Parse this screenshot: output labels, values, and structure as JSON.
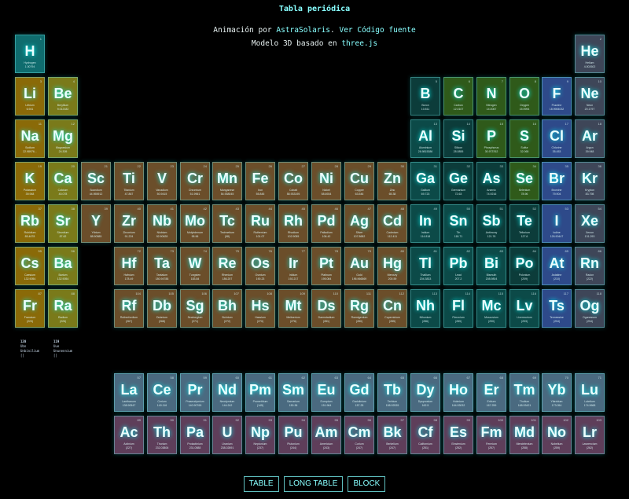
{
  "header": {
    "title": "Tabla periódica",
    "line1_prefix": "Animación por ",
    "line1_author": "AstraSolaris",
    "line1_sep": ". ",
    "line1_link": "Ver Código fuente",
    "line2_prefix": "Modelo 3D basado en ",
    "line2_link": "three.js"
  },
  "colors": {
    "alkali": "#8a6a08",
    "alkaline": "#7a7a1a",
    "transition": "#6b4e2a",
    "nonmetal": "#2f5a1a",
    "halogen": "#2e4a8a",
    "noble": "#3e4658",
    "poor": "#0c4a48",
    "metalloid": "#0c3c3a",
    "hydrogen": "#0f6c6e",
    "lanthanide": "#4a6a80",
    "actinide": "#5e3e5a"
  },
  "elements": [
    {
      "s": "H",
      "n": "1",
      "name": "Hydrogen",
      "m": "1.00794",
      "col": 1,
      "row": 1,
      "cat": "hydrogen"
    },
    {
      "s": "He",
      "n": "2",
      "name": "Helium",
      "m": "4.002602",
      "col": 18,
      "row": 1,
      "cat": "noble"
    },
    {
      "s": "Li",
      "n": "3",
      "name": "Lithium",
      "m": "6.941",
      "col": 1,
      "row": 2,
      "cat": "alkali"
    },
    {
      "s": "Be",
      "n": "4",
      "name": "Beryllium",
      "m": "9.012182",
      "col": 2,
      "row": 2,
      "cat": "alkaline"
    },
    {
      "s": "B",
      "n": "5",
      "name": "Boron",
      "m": "10.811",
      "col": 13,
      "row": 2,
      "cat": "metalloid"
    },
    {
      "s": "C",
      "n": "6",
      "name": "Carbon",
      "m": "12.0107",
      "col": 14,
      "row": 2,
      "cat": "nonmetal"
    },
    {
      "s": "N",
      "n": "7",
      "name": "Nitrogen",
      "m": "14.0067",
      "col": 15,
      "row": 2,
      "cat": "nonmetal"
    },
    {
      "s": "O",
      "n": "8",
      "name": "Oxygen",
      "m": "15.9994",
      "col": 16,
      "row": 2,
      "cat": "nonmetal"
    },
    {
      "s": "F",
      "n": "9",
      "name": "Fluorine",
      "m": "18.9984032",
      "col": 17,
      "row": 2,
      "cat": "halogen"
    },
    {
      "s": "Ne",
      "n": "10",
      "name": "Neon",
      "m": "20.1797",
      "col": 18,
      "row": 2,
      "cat": "noble"
    },
    {
      "s": "Na",
      "n": "11",
      "name": "Sodium",
      "m": "22.98976...",
      "col": 1,
      "row": 3,
      "cat": "alkali"
    },
    {
      "s": "Mg",
      "n": "12",
      "name": "Magnesium",
      "m": "24.305",
      "col": 2,
      "row": 3,
      "cat": "alkaline"
    },
    {
      "s": "Al",
      "n": "13",
      "name": "Aluminium",
      "m": "26.9815386",
      "col": 13,
      "row": 3,
      "cat": "poor"
    },
    {
      "s": "Si",
      "n": "14",
      "name": "Silicon",
      "m": "28.0855",
      "col": 14,
      "row": 3,
      "cat": "metalloid"
    },
    {
      "s": "P",
      "n": "15",
      "name": "Phosphorus",
      "m": "30.973762",
      "col": 15,
      "row": 3,
      "cat": "nonmetal"
    },
    {
      "s": "S",
      "n": "16",
      "name": "Sulfur",
      "m": "32.065",
      "col": 16,
      "row": 3,
      "cat": "nonmetal"
    },
    {
      "s": "Cl",
      "n": "17",
      "name": "Chlorine",
      "m": "35.453",
      "col": 17,
      "row": 3,
      "cat": "halogen"
    },
    {
      "s": "Ar",
      "n": "18",
      "name": "Argon",
      "m": "39.948",
      "col": 18,
      "row": 3,
      "cat": "noble"
    },
    {
      "s": "K",
      "n": "19",
      "name": "Potassium",
      "m": "39.948",
      "col": 1,
      "row": 4,
      "cat": "alkali"
    },
    {
      "s": "Ca",
      "n": "20",
      "name": "Calcium",
      "m": "40.078",
      "col": 2,
      "row": 4,
      "cat": "alkaline"
    },
    {
      "s": "Sc",
      "n": "21",
      "name": "Scandium",
      "m": "44.955912",
      "col": 3,
      "row": 4,
      "cat": "transition"
    },
    {
      "s": "Ti",
      "n": "22",
      "name": "Titanium",
      "m": "47.867",
      "col": 4,
      "row": 4,
      "cat": "transition"
    },
    {
      "s": "V",
      "n": "23",
      "name": "Vanadium",
      "m": "50.9415",
      "col": 5,
      "row": 4,
      "cat": "transition"
    },
    {
      "s": "Cr",
      "n": "24",
      "name": "Chromium",
      "m": "51.9961",
      "col": 6,
      "row": 4,
      "cat": "transition"
    },
    {
      "s": "Mn",
      "n": "25",
      "name": "Manganese",
      "m": "54.938045",
      "col": 7,
      "row": 4,
      "cat": "transition"
    },
    {
      "s": "Fe",
      "n": "26",
      "name": "Iron",
      "m": "55.845",
      "col": 8,
      "row": 4,
      "cat": "transition"
    },
    {
      "s": "Co",
      "n": "27",
      "name": "Cobalt",
      "m": "58.933195",
      "col": 9,
      "row": 4,
      "cat": "transition"
    },
    {
      "s": "Ni",
      "n": "28",
      "name": "Nickel",
      "m": "58.6934",
      "col": 10,
      "row": 4,
      "cat": "transition"
    },
    {
      "s": "Cu",
      "n": "29",
      "name": "Copper",
      "m": "63.546",
      "col": 11,
      "row": 4,
      "cat": "transition"
    },
    {
      "s": "Zn",
      "n": "30",
      "name": "Zinc",
      "m": "65.38",
      "col": 12,
      "row": 4,
      "cat": "transition"
    },
    {
      "s": "Ga",
      "n": "31",
      "name": "Gallium",
      "m": "69.723",
      "col": 13,
      "row": 4,
      "cat": "poor"
    },
    {
      "s": "Ge",
      "n": "32",
      "name": "Germanium",
      "m": "72.63",
      "col": 14,
      "row": 4,
      "cat": "metalloid"
    },
    {
      "s": "As",
      "n": "33",
      "name": "Arsenic",
      "m": "74.9216",
      "col": 15,
      "row": 4,
      "cat": "metalloid"
    },
    {
      "s": "Se",
      "n": "34",
      "name": "Selenium",
      "m": "78.96",
      "col": 16,
      "row": 4,
      "cat": "nonmetal"
    },
    {
      "s": "Br",
      "n": "35",
      "name": "Bromine",
      "m": "79.904",
      "col": 17,
      "row": 4,
      "cat": "halogen"
    },
    {
      "s": "Kr",
      "n": "36",
      "name": "Krypton",
      "m": "83.798",
      "col": 18,
      "row": 4,
      "cat": "noble"
    },
    {
      "s": "Rb",
      "n": "37",
      "name": "Rubidium",
      "m": "85.4678",
      "col": 1,
      "row": 5,
      "cat": "alkali"
    },
    {
      "s": "Sr",
      "n": "38",
      "name": "Strontium",
      "m": "87.62",
      "col": 2,
      "row": 5,
      "cat": "alkaline"
    },
    {
      "s": "Y",
      "n": "39",
      "name": "Yttrium",
      "m": "88.90585",
      "col": 3,
      "row": 5,
      "cat": "transition"
    },
    {
      "s": "Zr",
      "n": "40",
      "name": "Zirconium",
      "m": "91.224",
      "col": 4,
      "row": 5,
      "cat": "transition"
    },
    {
      "s": "Nb",
      "n": "41",
      "name": "Niobium",
      "m": "92.90628",
      "col": 5,
      "row": 5,
      "cat": "transition"
    },
    {
      "s": "Mo",
      "n": "42",
      "name": "Molybdenum",
      "m": "95.96",
      "col": 6,
      "row": 5,
      "cat": "transition"
    },
    {
      "s": "Tc",
      "n": "43",
      "name": "Technetium",
      "m": "(98)",
      "col": 7,
      "row": 5,
      "cat": "transition"
    },
    {
      "s": "Ru",
      "n": "44",
      "name": "Ruthenium",
      "m": "101.07",
      "col": 8,
      "row": 5,
      "cat": "transition"
    },
    {
      "s": "Rh",
      "n": "45",
      "name": "Rhodium",
      "m": "102.9055",
      "col": 9,
      "row": 5,
      "cat": "transition"
    },
    {
      "s": "Pd",
      "n": "46",
      "name": "Palladium",
      "m": "106.42",
      "col": 10,
      "row": 5,
      "cat": "transition"
    },
    {
      "s": "Ag",
      "n": "47",
      "name": "Silver",
      "m": "107.8682",
      "col": 11,
      "row": 5,
      "cat": "transition"
    },
    {
      "s": "Cd",
      "n": "48",
      "name": "Cadmium",
      "m": "112.411",
      "col": 12,
      "row": 5,
      "cat": "transition"
    },
    {
      "s": "In",
      "n": "49",
      "name": "Indium",
      "m": "114.818",
      "col": 13,
      "row": 5,
      "cat": "poor"
    },
    {
      "s": "Sn",
      "n": "50",
      "name": "Tin",
      "m": "118.71",
      "col": 14,
      "row": 5,
      "cat": "poor"
    },
    {
      "s": "Sb",
      "n": "51",
      "name": "Antimony",
      "m": "121.76",
      "col": 15,
      "row": 5,
      "cat": "metalloid"
    },
    {
      "s": "Te",
      "n": "52",
      "name": "Tellurium",
      "m": "127.6",
      "col": 16,
      "row": 5,
      "cat": "metalloid"
    },
    {
      "s": "I",
      "n": "53",
      "name": "Iodine",
      "m": "126.90447",
      "col": 17,
      "row": 5,
      "cat": "halogen"
    },
    {
      "s": "Xe",
      "n": "54",
      "name": "Xenon",
      "m": "131.293",
      "col": 18,
      "row": 5,
      "cat": "noble"
    },
    {
      "s": "Cs",
      "n": "55",
      "name": "Caesium",
      "m": "132.9054",
      "col": 1,
      "row": 6,
      "cat": "alkali"
    },
    {
      "s": "Ba",
      "n": "56",
      "name": "Barium",
      "m": "132.9054",
      "col": 2,
      "row": 6,
      "cat": "alkaline"
    },
    {
      "s": "Hf",
      "n": "72",
      "name": "Hafnium",
      "m": "178.49",
      "col": 4,
      "row": 6,
      "cat": "transition"
    },
    {
      "s": "Ta",
      "n": "73",
      "name": "Tantalum",
      "m": "180.94788",
      "col": 5,
      "row": 6,
      "cat": "transition"
    },
    {
      "s": "W",
      "n": "74",
      "name": "Tungsten",
      "m": "183.84",
      "col": 6,
      "row": 6,
      "cat": "transition"
    },
    {
      "s": "Re",
      "n": "75",
      "name": "Rhenium",
      "m": "186.207",
      "col": 7,
      "row": 6,
      "cat": "transition"
    },
    {
      "s": "Os",
      "n": "76",
      "name": "Osmium",
      "m": "190.23",
      "col": 8,
      "row": 6,
      "cat": "transition"
    },
    {
      "s": "Ir",
      "n": "77",
      "name": "Iridium",
      "m": "192.217",
      "col": 9,
      "row": 6,
      "cat": "transition"
    },
    {
      "s": "Pt",
      "n": "78",
      "name": "Platinum",
      "m": "195.084",
      "col": 10,
      "row": 6,
      "cat": "transition"
    },
    {
      "s": "Au",
      "n": "79",
      "name": "Gold",
      "m": "196.966569",
      "col": 11,
      "row": 6,
      "cat": "transition"
    },
    {
      "s": "Hg",
      "n": "80",
      "name": "Mercury",
      "m": "200.59",
      "col": 12,
      "row": 6,
      "cat": "transition"
    },
    {
      "s": "Tl",
      "n": "81",
      "name": "Thallium",
      "m": "204.3833",
      "col": 13,
      "row": 6,
      "cat": "poor"
    },
    {
      "s": "Pb",
      "n": "82",
      "name": "Lead",
      "m": "207.2",
      "col": 14,
      "row": 6,
      "cat": "poor"
    },
    {
      "s": "Bi",
      "n": "83",
      "name": "Bismuth",
      "m": "208.9804",
      "col": 15,
      "row": 6,
      "cat": "poor"
    },
    {
      "s": "Po",
      "n": "84",
      "name": "Polonium",
      "m": "(209)",
      "col": 16,
      "row": 6,
      "cat": "metalloid"
    },
    {
      "s": "At",
      "n": "85",
      "name": "Astatine",
      "m": "(210)",
      "col": 17,
      "row": 6,
      "cat": "halogen"
    },
    {
      "s": "Rn",
      "n": "86",
      "name": "Radon",
      "m": "(222)",
      "col": 18,
      "row": 6,
      "cat": "noble"
    },
    {
      "s": "Fr",
      "n": "87",
      "name": "Francium",
      "m": "(223)",
      "col": 1,
      "row": 7,
      "cat": "alkali"
    },
    {
      "s": "Ra",
      "n": "88",
      "name": "Radium",
      "m": "(226)",
      "col": 2,
      "row": 7,
      "cat": "alkaline"
    },
    {
      "s": "Rf",
      "n": "104",
      "name": "Rutherfordium",
      "m": "(267)",
      "col": 4,
      "row": 7,
      "cat": "transition"
    },
    {
      "s": "Db",
      "n": "105",
      "name": "Dubnium",
      "m": "(268)",
      "col": 5,
      "row": 7,
      "cat": "transition"
    },
    {
      "s": "Sg",
      "n": "106",
      "name": "Seaborgium",
      "m": "(271)",
      "col": 6,
      "row": 7,
      "cat": "transition"
    },
    {
      "s": "Bh",
      "n": "107",
      "name": "Bohrium",
      "m": "(272)",
      "col": 7,
      "row": 7,
      "cat": "transition"
    },
    {
      "s": "Hs",
      "n": "108",
      "name": "Hassium",
      "m": "(270)",
      "col": 8,
      "row": 7,
      "cat": "transition"
    },
    {
      "s": "Mt",
      "n": "109",
      "name": "Meitnerium",
      "m": "(276)",
      "col": 9,
      "row": 7,
      "cat": "transition"
    },
    {
      "s": "Ds",
      "n": "110",
      "name": "Darmstadium",
      "m": "(281)",
      "col": 10,
      "row": 7,
      "cat": "transition"
    },
    {
      "s": "Rg",
      "n": "111",
      "name": "Roentgenium",
      "m": "(280)",
      "col": 11,
      "row": 7,
      "cat": "transition"
    },
    {
      "s": "Cn",
      "n": "112",
      "name": "Copernicium",
      "m": "(285)",
      "col": 12,
      "row": 7,
      "cat": "transition"
    },
    {
      "s": "Nh",
      "n": "113",
      "name": "Nihonium",
      "m": "(286)",
      "col": 13,
      "row": 7,
      "cat": "poor"
    },
    {
      "s": "Fl",
      "n": "114",
      "name": "Flerovium",
      "m": "(289)",
      "col": 14,
      "row": 7,
      "cat": "poor"
    },
    {
      "s": "Mc",
      "n": "115",
      "name": "Moscovium",
      "m": "(290)",
      "col": 15,
      "row": 7,
      "cat": "poor"
    },
    {
      "s": "Lv",
      "n": "116",
      "name": "Livermorium",
      "m": "(293)",
      "col": 16,
      "row": 7,
      "cat": "poor"
    },
    {
      "s": "Ts",
      "n": "117",
      "name": "Tennessine",
      "m": "(294)",
      "col": 17,
      "row": 7,
      "cat": "halogen"
    },
    {
      "s": "Og",
      "n": "118",
      "name": "Oganesson",
      "m": "(294)",
      "col": 18,
      "row": 7,
      "cat": "noble"
    },
    {
      "s": "La",
      "n": "57",
      "name": "Lanthanum",
      "m": "138.90547",
      "col": 4,
      "row": 9,
      "cat": "lanthanide"
    },
    {
      "s": "Ce",
      "n": "58",
      "name": "Cerium",
      "m": "140.116",
      "col": 5,
      "row": 9,
      "cat": "lanthanide"
    },
    {
      "s": "Pr",
      "n": "59",
      "name": "Praseodymium",
      "m": "140.90765",
      "col": 6,
      "row": 9,
      "cat": "lanthanide"
    },
    {
      "s": "Nd",
      "n": "60",
      "name": "Neodymium",
      "m": "144.242",
      "col": 7,
      "row": 9,
      "cat": "lanthanide"
    },
    {
      "s": "Pm",
      "n": "61",
      "name": "Promethium",
      "m": "(145)",
      "col": 8,
      "row": 9,
      "cat": "lanthanide"
    },
    {
      "s": "Sm",
      "n": "62",
      "name": "Samarium",
      "m": "150.36",
      "col": 9,
      "row": 9,
      "cat": "lanthanide"
    },
    {
      "s": "Eu",
      "n": "63",
      "name": "Europium",
      "m": "151.964",
      "col": 10,
      "row": 9,
      "cat": "lanthanide"
    },
    {
      "s": "Gd",
      "n": "64",
      "name": "Gadolinium",
      "m": "157.25",
      "col": 11,
      "row": 9,
      "cat": "lanthanide"
    },
    {
      "s": "Tb",
      "n": "65",
      "name": "Terbium",
      "m": "158.92535",
      "col": 12,
      "row": 9,
      "cat": "lanthanide"
    },
    {
      "s": "Dy",
      "n": "66",
      "name": "Dysprosium",
      "m": "162.5",
      "col": 13,
      "row": 9,
      "cat": "lanthanide"
    },
    {
      "s": "Ho",
      "n": "67",
      "name": "Holmium",
      "m": "164.93032",
      "col": 14,
      "row": 9,
      "cat": "lanthanide"
    },
    {
      "s": "Er",
      "n": "68",
      "name": "Erbium",
      "m": "167.259",
      "col": 15,
      "row": 9,
      "cat": "lanthanide"
    },
    {
      "s": "Tm",
      "n": "69",
      "name": "Thulium",
      "m": "168.93421",
      "col": 16,
      "row": 9,
      "cat": "lanthanide"
    },
    {
      "s": "Yb",
      "n": "70",
      "name": "Ytterbium",
      "m": "173.054",
      "col": 17,
      "row": 9,
      "cat": "lanthanide"
    },
    {
      "s": "Lu",
      "n": "71",
      "name": "Lutetium",
      "m": "174.9668",
      "col": 18,
      "row": 9,
      "cat": "lanthanide"
    },
    {
      "s": "Ac",
      "n": "89",
      "name": "Actinium",
      "m": "(227)",
      "col": 4,
      "row": 10,
      "cat": "actinide"
    },
    {
      "s": "Th",
      "n": "90",
      "name": "Thorium",
      "m": "232.03806",
      "col": 5,
      "row": 10,
      "cat": "actinide"
    },
    {
      "s": "Pa",
      "n": "91",
      "name": "Protactinium",
      "m": "231.0588",
      "col": 6,
      "row": 10,
      "cat": "actinide"
    },
    {
      "s": "U",
      "n": "92",
      "name": "Uranium",
      "m": "238.02891",
      "col": 7,
      "row": 10,
      "cat": "actinide"
    },
    {
      "s": "Np",
      "n": "93",
      "name": "Neptunium",
      "m": "(237)",
      "col": 8,
      "row": 10,
      "cat": "actinide"
    },
    {
      "s": "Pu",
      "n": "94",
      "name": "Plutonium",
      "m": "(244)",
      "col": 9,
      "row": 10,
      "cat": "actinide"
    },
    {
      "s": "Am",
      "n": "95",
      "name": "Americium",
      "m": "(243)",
      "col": 10,
      "row": 10,
      "cat": "actinide"
    },
    {
      "s": "Cm",
      "n": "96",
      "name": "Curium",
      "m": "(247)",
      "col": 11,
      "row": 10,
      "cat": "actinide"
    },
    {
      "s": "Bk",
      "n": "97",
      "name": "Berkelium",
      "m": "(247)",
      "col": 12,
      "row": 10,
      "cat": "actinide"
    },
    {
      "s": "Cf",
      "n": "98",
      "name": "Californium",
      "m": "(251)",
      "col": 13,
      "row": 10,
      "cat": "actinide"
    },
    {
      "s": "Es",
      "n": "99",
      "name": "Einstenium",
      "m": "(252)",
      "col": 14,
      "row": 10,
      "cat": "actinide"
    },
    {
      "s": "Fm",
      "n": "100",
      "name": "Fermium",
      "m": "(257)",
      "col": 15,
      "row": 10,
      "cat": "actinide"
    },
    {
      "s": "Md",
      "n": "101",
      "name": "Mendelevium",
      "m": "(258)",
      "col": 16,
      "row": 10,
      "cat": "actinide"
    },
    {
      "s": "No",
      "n": "102",
      "name": "Nobelium",
      "m": "(259)",
      "col": 17,
      "row": 10,
      "cat": "actinide"
    },
    {
      "s": "Lr",
      "n": "103",
      "name": "Lawrencium",
      "m": "(262)",
      "col": 18,
      "row": 10,
      "cat": "actinide"
    }
  ],
  "mini_tiles": [
    {
      "n": "120",
      "s": "Ubn",
      "name": "Unbinilium",
      "m": "[]"
    },
    {
      "n": "119",
      "s": "Uue",
      "name": "Ununennium",
      "m": "[]"
    }
  ],
  "buttons": [
    "TABLE",
    "LONG TABLE",
    "BLOCK"
  ]
}
